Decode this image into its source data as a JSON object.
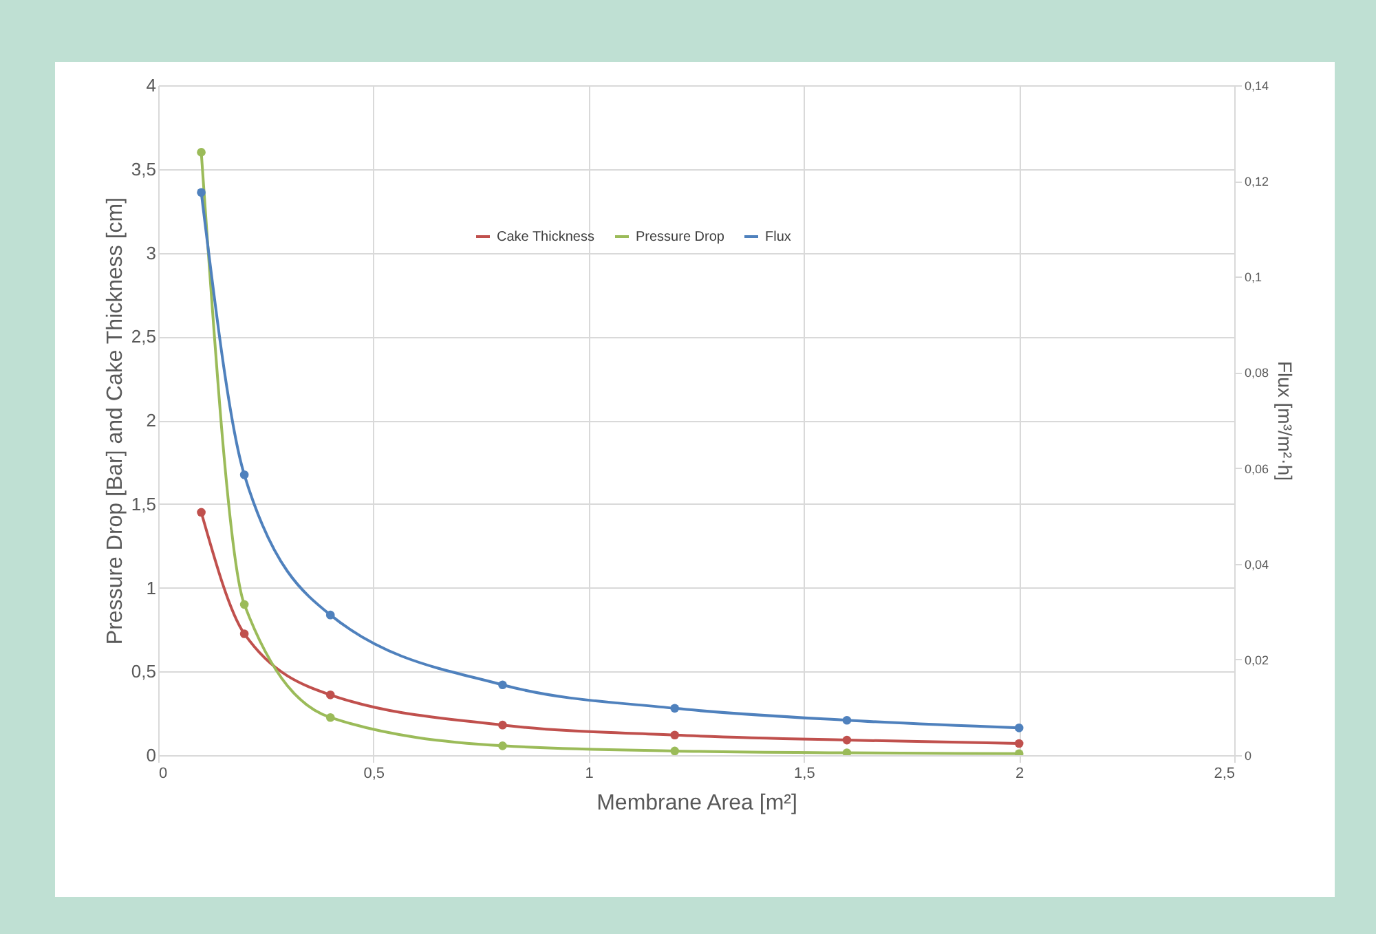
{
  "chart_data": {
    "type": "line",
    "xlabel": "Membrane Area [m²]",
    "ylabel": "Pressure Drop [Bar] and Cake Thickness [cm]",
    "y2label": "Flux [m³/m²·h]",
    "x": [
      0.1,
      0.2,
      0.4,
      0.8,
      1.2,
      1.6,
      2.0
    ],
    "series": [
      {
        "name": "Cake Thickness",
        "color": "#c0504d",
        "values": [
          1.45,
          0.725,
          0.36,
          0.18,
          0.12,
          0.09,
          0.07
        ]
      },
      {
        "name": "Pressure Drop",
        "color": "#9bbb59",
        "values": [
          3.6,
          0.9,
          0.225,
          0.056,
          0.025,
          0.014,
          0.009
        ]
      },
      {
        "name": "Flux",
        "color": "#4f81bd",
        "axis": "y2",
        "values": [
          0.1176,
          0.0586,
          0.0293,
          0.0147,
          0.0098,
          0.0073,
          0.0057
        ]
      }
    ],
    "xlim": [
      0,
      2.5
    ],
    "xticks": [
      0,
      {
        "value": 0.5,
        "label": "0,5"
      },
      1,
      {
        "value": 1.5,
        "label": "1,5"
      },
      2,
      {
        "value": 2.5,
        "label": "2,5"
      }
    ],
    "ylim": [
      0,
      4
    ],
    "yticks": [
      0,
      {
        "value": 0.5,
        "label": "0,5"
      },
      1,
      {
        "value": 1.5,
        "label": "1,5"
      },
      2,
      {
        "value": 2.5,
        "label": "2,5"
      },
      3,
      {
        "value": 3.5,
        "label": "3,5"
      },
      4
    ],
    "y2lim": [
      0,
      0.14
    ],
    "y2ticks": [
      0,
      {
        "value": 0.02,
        "label": "0,02"
      },
      {
        "value": 0.04,
        "label": "0,04"
      },
      {
        "value": 0.06,
        "label": "0,06"
      },
      {
        "value": 0.08,
        "label": "0,08"
      },
      {
        "value": 0.1,
        "label": "0,1"
      },
      {
        "value": 0.12,
        "label": "0,12"
      },
      {
        "value": 0.14,
        "label": "0,14"
      }
    ],
    "grid": true,
    "legend": "top",
    "marker": "circle",
    "line_style": "solid"
  }
}
